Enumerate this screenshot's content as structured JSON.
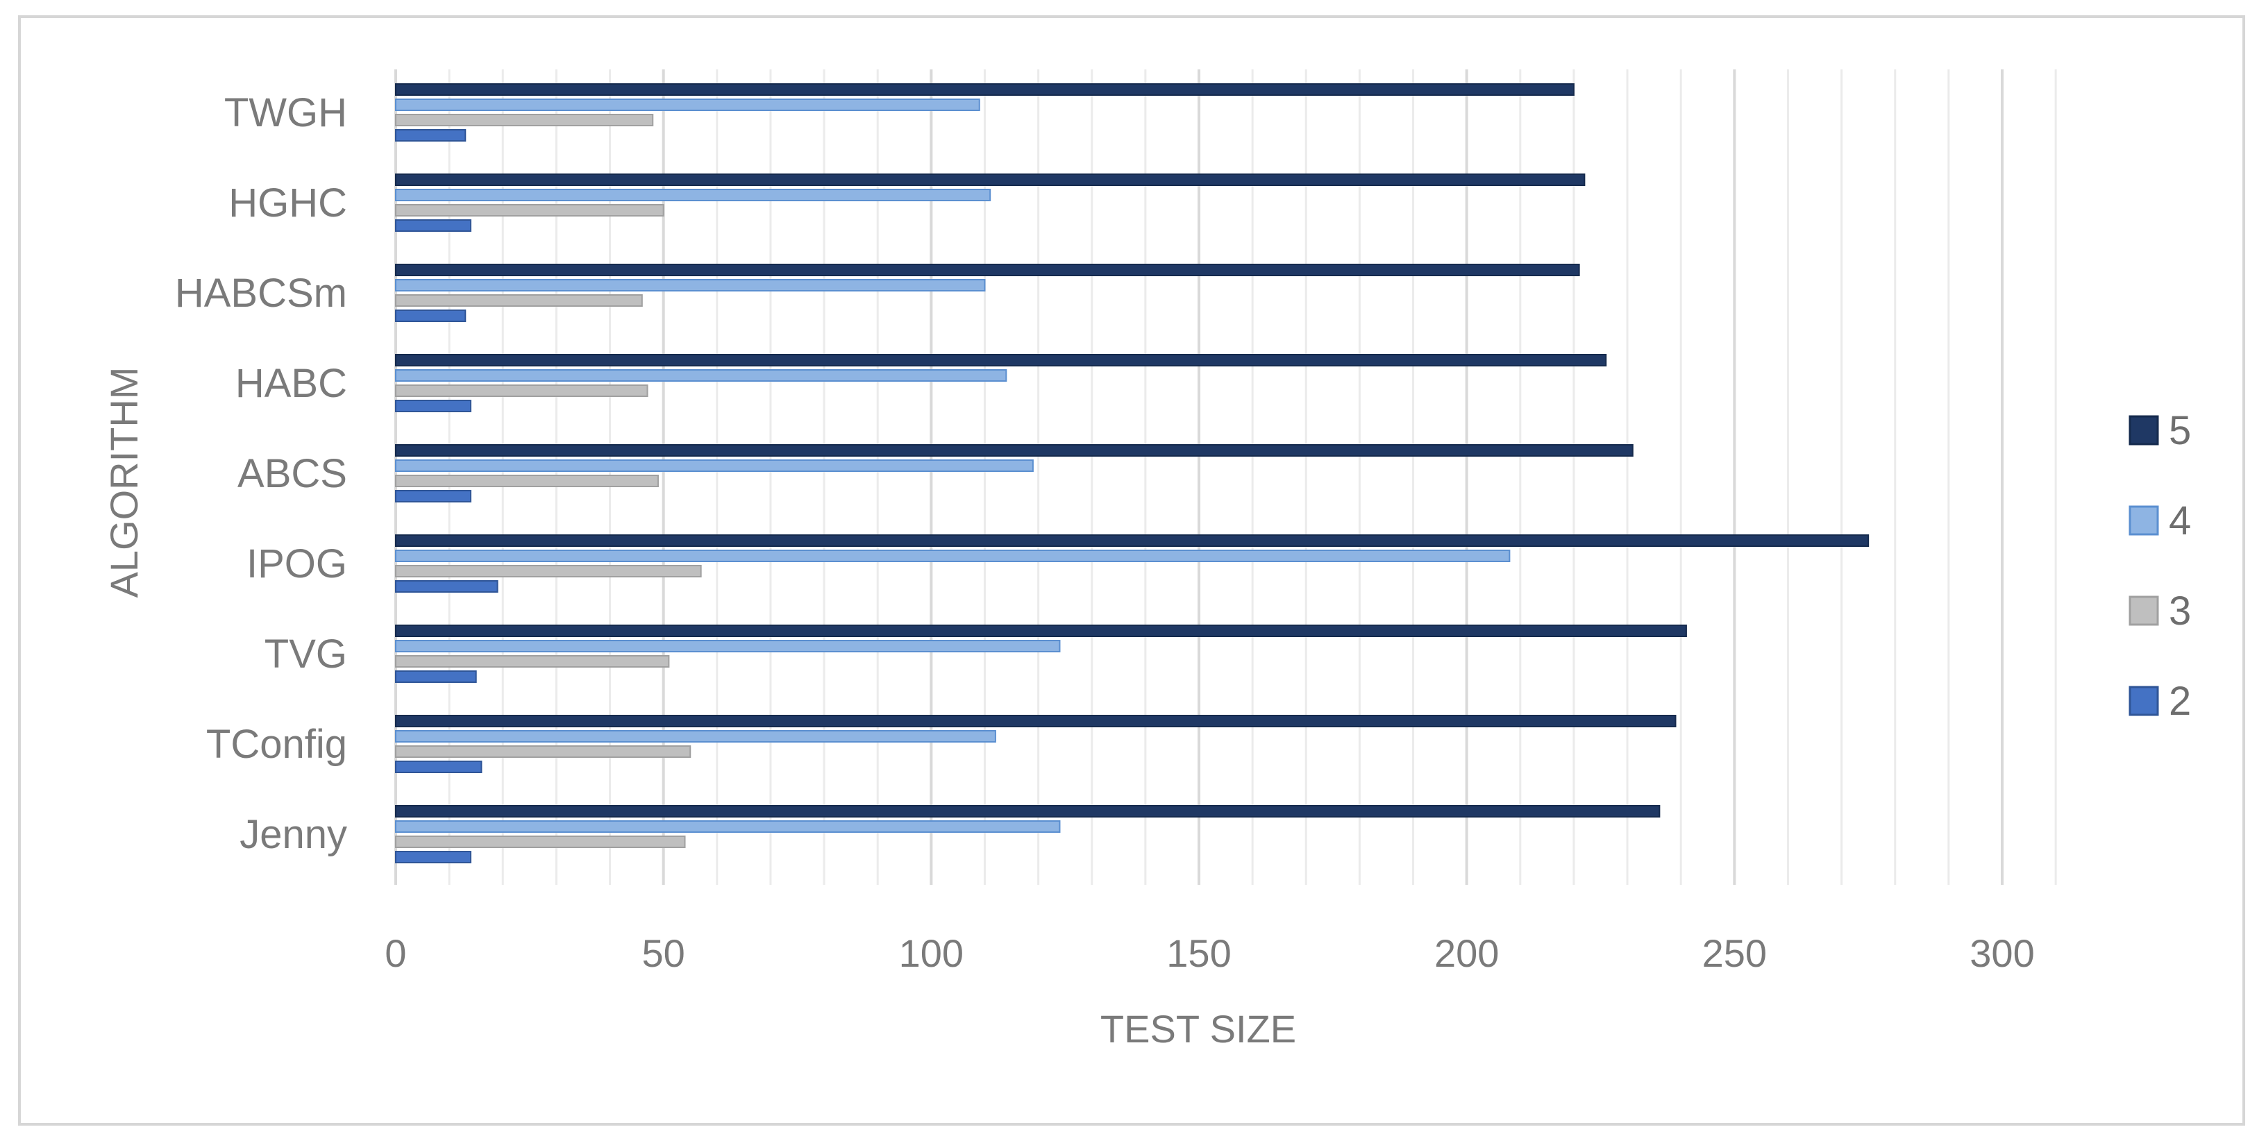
{
  "chart_data": {
    "type": "bar",
    "orientation": "horizontal",
    "title": "",
    "xlabel": "TEST SIZE",
    "ylabel": "ALGORITHM",
    "xlim": [
      0,
      300
    ],
    "x_ticks": [
      0,
      50,
      100,
      150,
      200,
      250,
      300
    ],
    "grid": true,
    "legend_position": "right",
    "categories": [
      "TWGH",
      "HGHC",
      "HABCSm",
      "HABC",
      "ABCS",
      "IPOG",
      "TVG",
      "TConfig",
      "Jenny"
    ],
    "series": [
      {
        "name": "5",
        "color": "#1f3864",
        "values": [
          220,
          222,
          221,
          226,
          231,
          275,
          241,
          239,
          236
        ]
      },
      {
        "name": "4",
        "color": "#8eb4e3",
        "values": [
          109,
          111,
          110,
          114,
          119,
          208,
          124,
          112,
          124
        ]
      },
      {
        "name": "3",
        "color": "#bfbfbf",
        "values": [
          48,
          50,
          46,
          47,
          49,
          57,
          51,
          55,
          54
        ]
      },
      {
        "name": "2",
        "color": "#4472c4",
        "values": [
          13,
          14,
          13,
          14,
          14,
          19,
          15,
          16,
          14
        ]
      }
    ]
  }
}
